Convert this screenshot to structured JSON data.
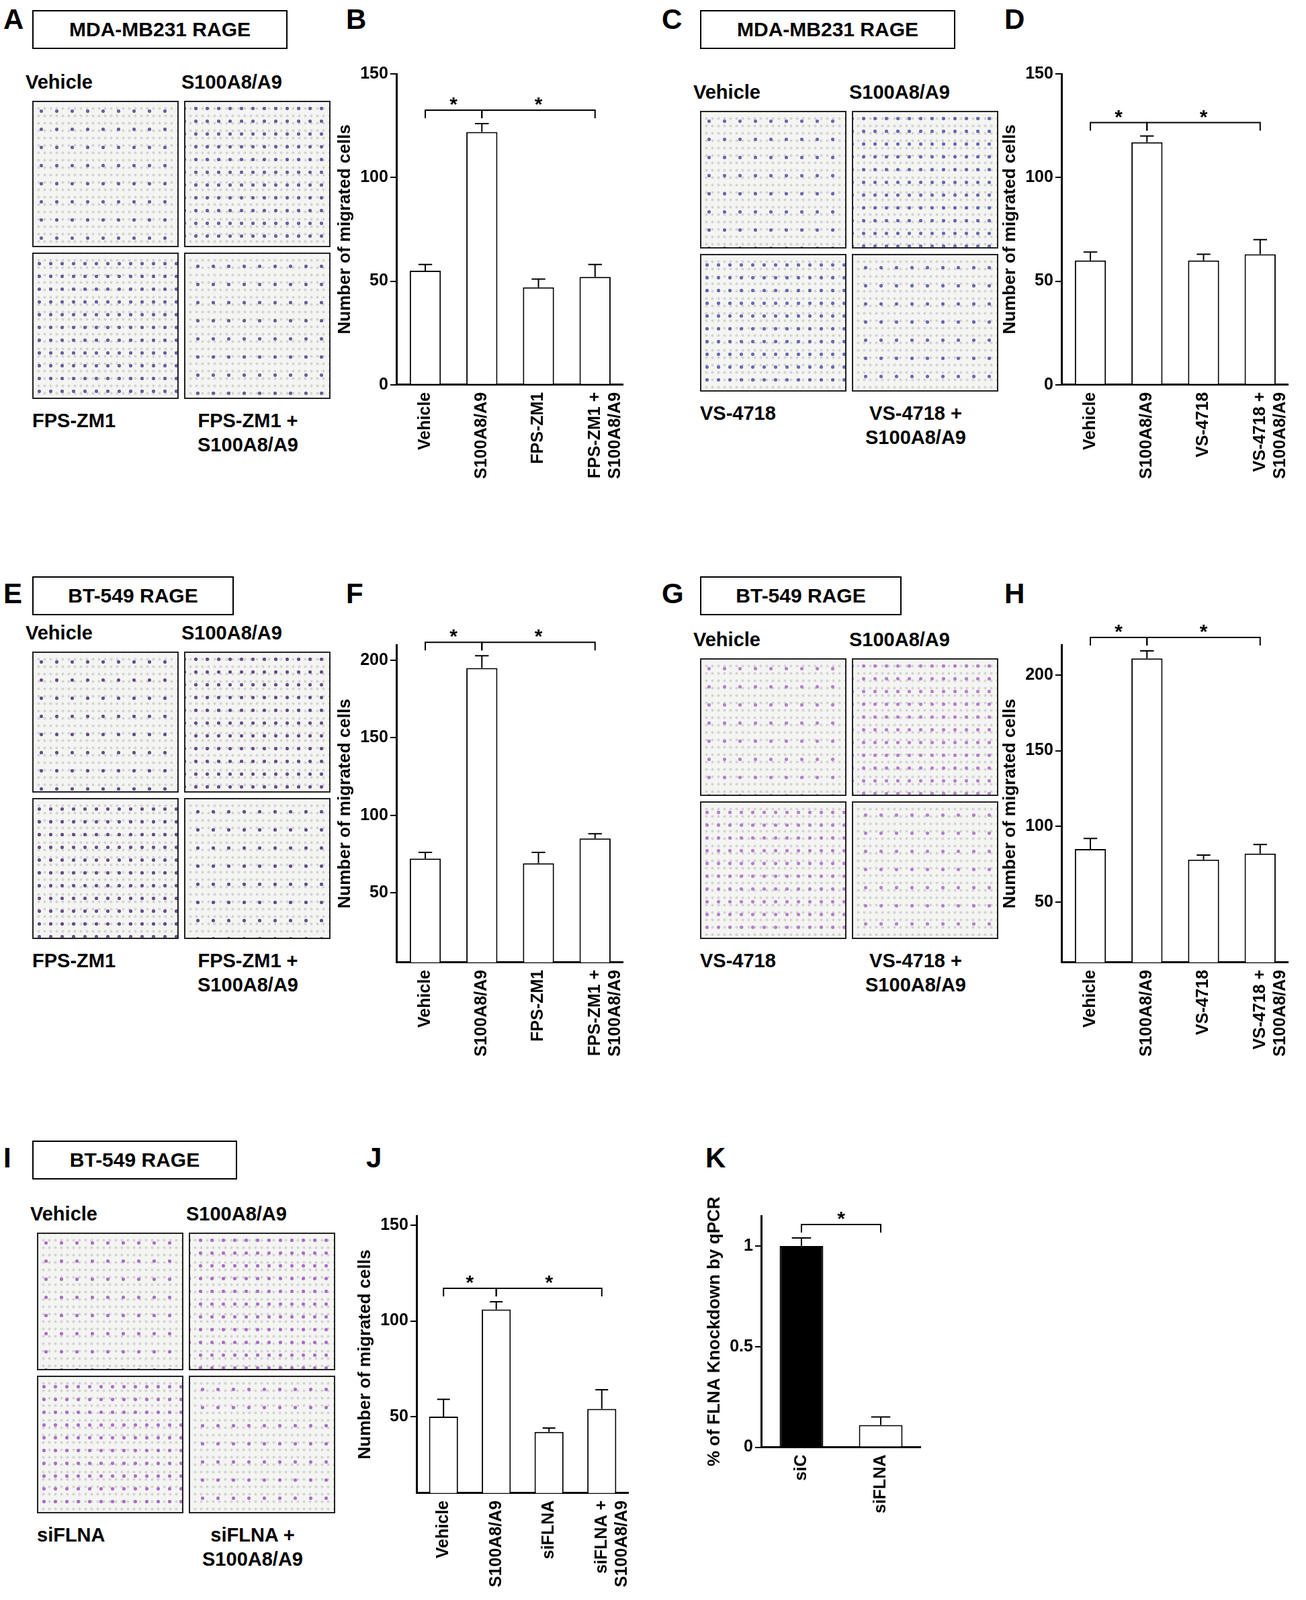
{
  "image_panels": [
    {
      "panel": "A",
      "title": "MDA-MB231 RAGE",
      "labels": [
        "Vehicle",
        "S100A8/A9",
        "FPS-ZM1",
        "FPS-ZM1 + S100A8/A9"
      ]
    },
    {
      "panel": "C",
      "title": "MDA-MB231 RAGE",
      "labels": [
        "Vehicle",
        "S100A8/A9",
        "VS-4718",
        "VS-4718 + S100A8/A9"
      ]
    },
    {
      "panel": "E",
      "title": "BT-549 RAGE",
      "labels": [
        "Vehicle",
        "S100A8/A9",
        "FPS-ZM1",
        "FPS-ZM1 + S100A8/A9"
      ]
    },
    {
      "panel": "G",
      "title": "BT-549 RAGE",
      "labels": [
        "Vehicle",
        "S100A8/A9",
        "VS-4718",
        "VS-4718 + S100A8/A9"
      ]
    },
    {
      "panel": "I",
      "title": "BT-549 RAGE",
      "labels": [
        "Vehicle",
        "S100A8/A9",
        "siFLNA",
        "siFLNA + S100A8/A9"
      ]
    }
  ],
  "chart_data": [
    {
      "panel": "B",
      "type": "bar",
      "y_label": "Number of migrated cells",
      "categories": [
        "Vehicle",
        "S100A8/A9",
        "FPS-ZM1",
        "FPS-ZM1 + S100A8/A9"
      ],
      "values": [
        55,
        122,
        47,
        52
      ],
      "errors": [
        3,
        4,
        4,
        6
      ],
      "color": "#ffffff",
      "ylim": [
        0,
        150
      ],
      "yticks": [
        0,
        50,
        100,
        150
      ],
      "annotations": [
        {
          "text": "*",
          "from": 0,
          "to": 1
        },
        {
          "text": "*",
          "from": 1,
          "to": 3
        }
      ]
    },
    {
      "panel": "D",
      "type": "bar",
      "y_label": "Number of migrated cells",
      "categories": [
        "Vehicle",
        "S100A8/A9",
        "VS-4718",
        "VS-4718 + S100A8/A9"
      ],
      "values": [
        60,
        117,
        60,
        63
      ],
      "errors": [
        4,
        3,
        3,
        7
      ],
      "color": "#ffffff",
      "ylim": [
        0,
        150
      ],
      "yticks": [
        0,
        50,
        100,
        150
      ],
      "annotations": [
        {
          "text": "*",
          "from": 0,
          "to": 1
        },
        {
          "text": "*",
          "from": 1,
          "to": 3
        }
      ]
    },
    {
      "panel": "F",
      "type": "bar",
      "y_label": "Number of migrated cells",
      "categories": [
        "Vehicle",
        "S100A8/A9",
        "FPS-ZM1",
        "FPS-ZM1 + S100A8/A9"
      ],
      "values": [
        72,
        195,
        69,
        85
      ],
      "errors": [
        4,
        8,
        7,
        3
      ],
      "color": "#ffffff",
      "ylim": [
        5,
        210
      ],
      "yticks": [
        50,
        100,
        150,
        200
      ],
      "annotations": [
        {
          "text": "*",
          "from": 0,
          "to": 1
        },
        {
          "text": "*",
          "from": 1,
          "to": 3
        }
      ]
    },
    {
      "panel": "H",
      "type": "bar",
      "y_label": "Number of migrated cells",
      "categories": [
        "Vehicle",
        "S100A8/A9",
        "VS-4718",
        "VS-4718 + S100A8/A9"
      ],
      "values": [
        85,
        211,
        78,
        82
      ],
      "errors": [
        7,
        5,
        3,
        6
      ],
      "color": "#ffffff",
      "ylim": [
        10,
        220
      ],
      "yticks": [
        50,
        100,
        150,
        200
      ],
      "annotations": [
        {
          "text": "*",
          "from": 0,
          "to": 1
        },
        {
          "text": "*",
          "from": 1,
          "to": 3
        }
      ]
    },
    {
      "panel": "J",
      "type": "bar",
      "y_label": "Number of migrated cells",
      "categories": [
        "Vehicle",
        "S100A8/A9",
        "siFLNA",
        "siFLNA + S100A8/A9"
      ],
      "values": [
        50,
        106,
        42,
        54
      ],
      "errors": [
        9,
        4,
        2,
        10
      ],
      "color": "#ffffff",
      "ylim": [
        10,
        155
      ],
      "yticks": [
        50,
        100,
        150
      ],
      "annotations": [
        {
          "text": "*",
          "from": 0,
          "to": 1
        },
        {
          "text": "*",
          "from": 1,
          "to": 3
        }
      ]
    },
    {
      "panel": "K",
      "type": "bar",
      "y_label": "% of FLNA Knockdown by qPCR",
      "categories": [
        "siC",
        "siFLNA"
      ],
      "values": [
        1.0,
        0.11
      ],
      "errors": [
        0.04,
        0.04
      ],
      "colors": [
        "#000000",
        "#ffffff"
      ],
      "ylim": [
        0,
        1.15
      ],
      "yticks": [
        0,
        0.5,
        1
      ],
      "annotations": [
        {
          "text": "*",
          "from": 0,
          "to": 1
        }
      ]
    }
  ]
}
